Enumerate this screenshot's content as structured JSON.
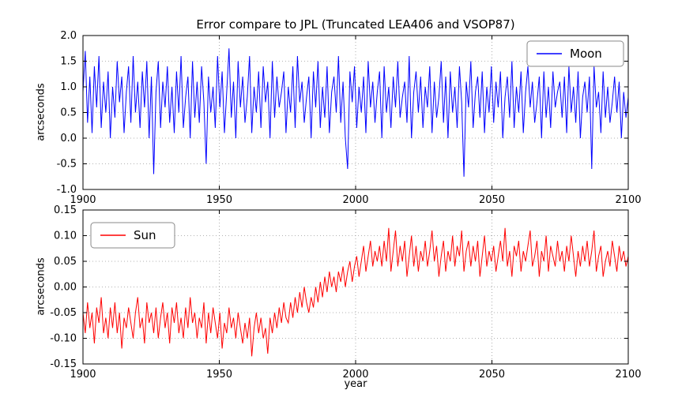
{
  "chart_data": [
    {
      "type": "line",
      "title": "Error compare to JPL (Truncated LEA406 and VSOP87)",
      "ylabel": "arcseconds",
      "xlabel": "",
      "xlim": [
        1900,
        2100
      ],
      "ylim": [
        -1.0,
        2.0
      ],
      "xticks": [
        1900,
        1950,
        2000,
        2050,
        2100
      ],
      "xtick_labels": [
        "1900",
        "1950",
        "2000",
        "2050",
        "2100"
      ],
      "yticks": [
        -1.0,
        -0.5,
        0.0,
        0.5,
        1.0,
        1.5,
        2.0
      ],
      "ytick_labels": [
        "-1.0",
        "-0.5",
        "0.0",
        "0.5",
        "1.0",
        "1.5",
        "2.0"
      ],
      "grid": true,
      "legend": {
        "label": "Moon",
        "position": "upper right"
      },
      "series": [
        {
          "name": "Moon",
          "color": "#0000ff",
          "x_start": 1900,
          "x_end": 2100,
          "values": [
            0.9,
            1.7,
            0.3,
            1.2,
            0.1,
            1.4,
            0.6,
            1.6,
            0.2,
            1.1,
            0.5,
            1.3,
            0.0,
            1.0,
            0.4,
            1.5,
            0.7,
            1.2,
            0.1,
            0.9,
            1.4,
            0.3,
            1.6,
            0.5,
            1.1,
            0.2,
            1.3,
            0.6,
            1.5,
            0.0,
            1.2,
            -0.7,
            0.9,
            1.5,
            0.2,
            1.1,
            0.6,
            1.4,
            0.3,
            1.0,
            0.1,
            1.3,
            0.5,
            1.6,
            0.2,
            0.8,
            1.2,
            0.0,
            1.5,
            0.4,
            1.1,
            0.3,
            1.4,
            0.7,
            -0.5,
            1.2,
            0.5,
            1.0,
            0.2,
            1.6,
            0.6,
            1.3,
            0.1,
            0.9,
            1.75,
            0.4,
            1.1,
            0.0,
            1.5,
            0.6,
            1.2,
            0.3,
            0.8,
            1.6,
            0.1,
            1.0,
            0.5,
            1.3,
            0.2,
            1.4,
            0.7,
            1.1,
            0.0,
            1.5,
            0.4,
            1.2,
            0.6,
            0.9,
            1.3,
            0.1,
            1.0,
            0.5,
            1.4,
            0.2,
            1.6,
            0.7,
            1.1,
            0.3,
            0.8,
            1.2,
            0.0,
            1.3,
            0.6,
            1.5,
            0.2,
            1.0,
            0.4,
            1.4,
            0.1,
            0.9,
            1.2,
            0.5,
            1.6,
            0.3,
            1.1,
            0.0,
            -0.6,
            1.3,
            0.7,
            1.4,
            0.2,
            1.0,
            0.5,
            1.2,
            0.1,
            1.5,
            0.6,
            1.1,
            0.3,
            0.9,
            1.3,
            0.0,
            1.4,
            0.5,
            1.0,
            0.2,
            1.2,
            0.6,
            1.5,
            0.4,
            0.8,
            1.1,
            0.3,
            1.6,
            0.0,
            0.9,
            1.3,
            0.5,
            1.2,
            0.2,
            1.0,
            0.6,
            1.4,
            0.1,
            1.1,
            0.4,
            0.8,
            1.5,
            0.3,
            1.2,
            0.0,
            1.3,
            0.5,
            1.0,
            0.2,
            1.4,
            0.7,
            -0.75,
            1.1,
            0.6,
            1.5,
            0.2,
            0.9,
            1.2,
            0.4,
            1.3,
            0.1,
            1.0,
            0.5,
            1.4,
            0.3,
            1.1,
            0.6,
            1.3,
            0.0,
            0.8,
            1.2,
            0.4,
            1.5,
            0.2,
            1.0,
            0.5,
            1.3,
            0.1,
            0.9,
            1.4,
            0.6,
            1.1,
            0.3,
            0.7,
            1.2,
            0.0,
            1.3,
            0.4,
            1.0,
            0.2,
            1.3,
            0.6,
            0.9,
            1.1,
            0.4,
            1.2,
            0.1,
            1.4,
            0.5,
            1.0,
            0.3,
            1.3,
            0.0,
            0.8,
            1.1,
            0.5,
            1.2,
            -0.6,
            1.4,
            0.6,
            0.9,
            0.1,
            1.3,
            0.4,
            1.0,
            0.3,
            0.7,
            1.2,
            0.5,
            1.1,
            0.0,
            0.9,
            0.4,
            0.8
          ]
        }
      ]
    },
    {
      "type": "line",
      "title": "",
      "ylabel": "arcseconds",
      "xlabel": "year",
      "xlim": [
        1900,
        2100
      ],
      "ylim": [
        -0.15,
        0.15
      ],
      "xticks": [
        1900,
        1950,
        2000,
        2050,
        2100
      ],
      "xtick_labels": [
        "1900",
        "1950",
        "2000",
        "2050",
        "2100"
      ],
      "yticks": [
        -0.15,
        -0.1,
        -0.05,
        0.0,
        0.05,
        0.1,
        0.15
      ],
      "ytick_labels": [
        "-0.15",
        "-0.10",
        "-0.05",
        "0.00",
        "0.05",
        "0.10",
        "0.15"
      ],
      "grid": true,
      "legend": {
        "label": "Sun",
        "position": "upper left"
      },
      "series": [
        {
          "name": "Sun",
          "color": "#ff0000",
          "x_start": 1900,
          "x_end": 2100,
          "values": [
            -0.05,
            -0.09,
            -0.03,
            -0.08,
            -0.05,
            -0.11,
            -0.04,
            -0.07,
            -0.02,
            -0.09,
            -0.06,
            -0.1,
            -0.04,
            -0.08,
            -0.03,
            -0.09,
            -0.05,
            -0.12,
            -0.06,
            -0.08,
            -0.04,
            -0.07,
            -0.1,
            -0.05,
            -0.02,
            -0.08,
            -0.06,
            -0.11,
            -0.03,
            -0.07,
            -0.05,
            -0.09,
            -0.04,
            -0.1,
            -0.06,
            -0.03,
            -0.08,
            -0.05,
            -0.11,
            -0.04,
            -0.07,
            -0.03,
            -0.09,
            -0.06,
            -0.1,
            -0.04,
            -0.08,
            -0.02,
            -0.07,
            -0.05,
            -0.1,
            -0.06,
            -0.08,
            -0.03,
            -0.11,
            -0.05,
            -0.09,
            -0.04,
            -0.07,
            -0.1,
            -0.05,
            -0.12,
            -0.07,
            -0.09,
            -0.04,
            -0.08,
            -0.06,
            -0.1,
            -0.05,
            -0.08,
            -0.11,
            -0.07,
            -0.1,
            -0.06,
            -0.135,
            -0.08,
            -0.05,
            -0.09,
            -0.06,
            -0.1,
            -0.08,
            -0.13,
            -0.06,
            -0.09,
            -0.05,
            -0.08,
            -0.04,
            -0.07,
            -0.03,
            -0.06,
            -0.07,
            -0.03,
            -0.06,
            -0.02,
            -0.05,
            -0.01,
            -0.04,
            0.0,
            -0.03,
            -0.05,
            -0.02,
            -0.04,
            0.0,
            -0.03,
            0.01,
            -0.02,
            0.02,
            -0.01,
            0.03,
            0.0,
            0.02,
            -0.01,
            0.03,
            0.01,
            0.04,
            0.0,
            0.03,
            0.05,
            0.01,
            0.04,
            0.06,
            0.02,
            0.05,
            0.08,
            0.03,
            0.06,
            0.09,
            0.04,
            0.07,
            0.05,
            0.08,
            0.04,
            0.09,
            0.05,
            0.115,
            0.03,
            0.07,
            0.11,
            0.04,
            0.08,
            0.05,
            0.09,
            0.02,
            0.06,
            0.1,
            0.04,
            0.08,
            0.03,
            0.07,
            0.05,
            0.09,
            0.04,
            0.07,
            0.11,
            0.05,
            0.08,
            0.02,
            0.06,
            0.09,
            0.03,
            0.07,
            0.05,
            0.1,
            0.04,
            0.08,
            0.06,
            0.11,
            0.03,
            0.07,
            0.09,
            0.04,
            0.08,
            0.05,
            0.09,
            0.02,
            0.06,
            0.1,
            0.04,
            0.07,
            0.05,
            0.08,
            0.03,
            0.06,
            0.09,
            0.05,
            0.115,
            0.04,
            0.07,
            0.02,
            0.08,
            0.06,
            0.09,
            0.03,
            0.07,
            0.05,
            0.08,
            0.11,
            0.04,
            0.06,
            0.09,
            0.02,
            0.07,
            0.05,
            0.1,
            0.03,
            0.08,
            0.06,
            0.04,
            0.09,
            0.05,
            0.07,
            0.03,
            0.08,
            0.05,
            0.1,
            0.06,
            0.02,
            0.07,
            0.04,
            0.08,
            0.05,
            0.09,
            0.04,
            0.07,
            0.11,
            0.03,
            0.06,
            0.08,
            0.02,
            0.05,
            0.07,
            0.04,
            0.09,
            0.06,
            0.03,
            0.08,
            0.05,
            0.07,
            0.04,
            0.06
          ]
        }
      ]
    }
  ]
}
